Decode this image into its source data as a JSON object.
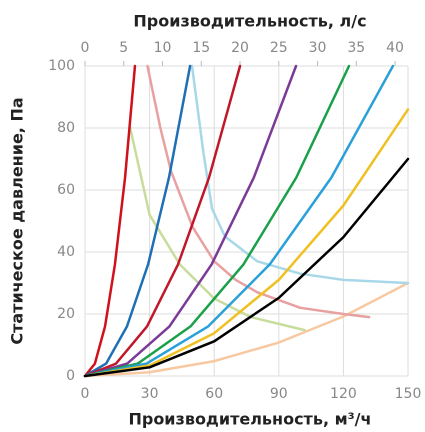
{
  "chart_data": {
    "type": "line",
    "x_label": "Производительность, м³/ч",
    "x2_label": "Производительность, л/с",
    "y_label": "Статическое давление, Па",
    "xlim": [
      0,
      150
    ],
    "xticks": [
      0,
      30,
      60,
      90,
      120,
      150
    ],
    "x2lim": [
      0,
      41.67
    ],
    "x2ticks": [
      0,
      5,
      10,
      15,
      20,
      25,
      30,
      35,
      40
    ],
    "ylim": [
      0,
      100
    ],
    "yticks": [
      0,
      20,
      40,
      60,
      80,
      100
    ],
    "grid": true,
    "series": [
      {
        "color": "#f8c8a0",
        "x": [
          0,
          30,
          60,
          90,
          120,
          150
        ],
        "values": [
          0,
          1.2,
          4.8,
          10.8,
          19.2,
          30
        ]
      },
      {
        "color": "#c8dc9c",
        "x": [
          21,
          30,
          44,
          60,
          77,
          102
        ],
        "values": [
          80,
          52,
          36,
          25,
          19,
          14.8
        ]
      },
      {
        "color": "#e8a0a0",
        "x": [
          29,
          35,
          40,
          50,
          60,
          70,
          80,
          100,
          120,
          132
        ],
        "values": [
          100,
          80,
          66,
          48,
          37,
          31,
          27,
          22,
          20,
          19
        ]
      },
      {
        "color": "#a8d8e8",
        "x": [
          49.7,
          55,
          59,
          65,
          80,
          100,
          120,
          150
        ],
        "values": [
          100,
          72,
          54,
          45,
          37,
          33,
          31,
          30
        ]
      },
      {
        "color": "#d0101a",
        "x": [
          0,
          4.6,
          9.3,
          13.9,
          18.6,
          23.2
        ],
        "values": [
          0,
          4,
          16,
          36,
          64,
          100
        ]
      },
      {
        "color": "#1f6fb5",
        "x": [
          0,
          9.8,
          19.5,
          29.3,
          39,
          48.8
        ],
        "values": [
          0,
          4,
          16,
          36,
          64,
          100
        ]
      },
      {
        "color": "#c0182a",
        "x": [
          0,
          14.4,
          28.8,
          43.2,
          57.6,
          72
        ],
        "values": [
          0,
          4,
          16,
          36,
          64,
          100
        ]
      },
      {
        "color": "#7b3a96",
        "x": [
          0,
          19.6,
          39.2,
          58.8,
          78.4,
          98
        ],
        "values": [
          0,
          4,
          16,
          36,
          64,
          100
        ]
      },
      {
        "color": "#1aa04a",
        "x": [
          0,
          24.5,
          49,
          73.6,
          98.1,
          122.6
        ],
        "values": [
          0,
          4,
          16,
          36,
          64,
          100
        ]
      },
      {
        "color": "#2aa0d8",
        "x": [
          0,
          28.6,
          57.2,
          85.8,
          114.4,
          143
        ],
        "values": [
          0,
          4,
          16,
          36,
          64,
          100
        ]
      },
      {
        "color": "#f0c020",
        "x": [
          0,
          30,
          60,
          90,
          120,
          150
        ],
        "values": [
          0,
          3.4,
          13.8,
          31,
          55,
          86
        ]
      },
      {
        "color": "#000000",
        "x": [
          0,
          30,
          60,
          90,
          120,
          150
        ],
        "values": [
          0,
          2.8,
          11.2,
          25.2,
          44.8,
          70
        ]
      }
    ]
  }
}
